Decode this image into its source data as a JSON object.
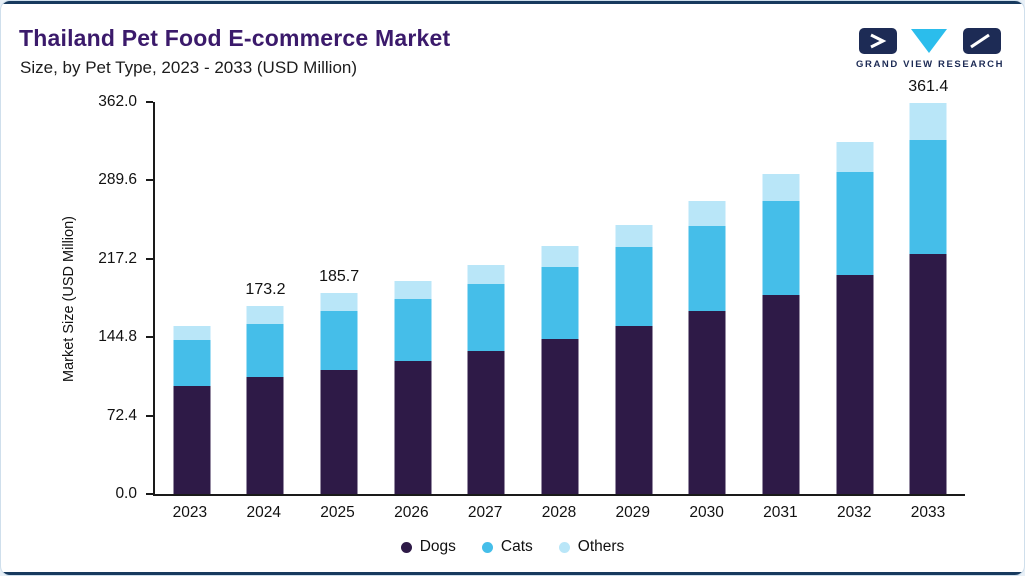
{
  "header": {
    "title": "Thailand Pet Food E-commerce Market",
    "subtitle": "Size, by Pet Type, 2023 - 2033 (USD Million)",
    "logo_text": "GRAND VIEW RESEARCH"
  },
  "colors": {
    "title_purple": "#3B1A6B",
    "topbar_navy": "#173A5E",
    "logo_navy": "#1D2B55",
    "logo_cyan": "#2BBDEC",
    "axis_text": "#111111",
    "page_background": "#E8F0F7",
    "dogs": "#2E1A47",
    "cats": "#45BEE9",
    "others": "#B9E6F8"
  },
  "chart_data": {
    "type": "bar",
    "stacked": true,
    "title": "Thailand Pet Food E-commerce Market Size, by Pet Type, 2023 - 2033 (USD Million)",
    "categories": [
      "2023",
      "2024",
      "2025",
      "2026",
      "2027",
      "2028",
      "2029",
      "2030",
      "2031",
      "2032",
      "2033"
    ],
    "series": [
      {
        "name": "Dogs",
        "color": "#2E1A47",
        "values": [
          100,
          108,
          115,
          123,
          132,
          143,
          155,
          169,
          184,
          202,
          222
        ]
      },
      {
        "name": "Cats",
        "color": "#45BEE9",
        "values": [
          42,
          49,
          54,
          57,
          62,
          67,
          73,
          79,
          87,
          95,
          105
        ]
      },
      {
        "name": "Others",
        "color": "#B9E6F8",
        "values": [
          13,
          16.2,
          16.7,
          17,
          18,
          19,
          21,
          23,
          25,
          28,
          34.4
        ]
      }
    ],
    "totals": [
      155,
      173.2,
      185.7,
      197,
      212,
      229,
      249,
      271,
      296,
      325,
      361.4
    ],
    "bar_total_labels": [
      "",
      "173.2",
      "185.7",
      "",
      "",
      "",
      "",
      "",
      "",
      "",
      "361.4"
    ],
    "xlabel": "",
    "ylabel": "Market Size (USD Million)",
    "yticks": [
      0.0,
      72.4,
      144.8,
      217.2,
      289.6,
      362.0
    ],
    "ytick_labels": [
      "0.0",
      "72.4",
      "144.8",
      "217.2",
      "289.6",
      "362.0"
    ],
    "ylim": [
      0,
      362.0
    ],
    "grid": false,
    "legend_position": "bottom",
    "legend": [
      "Dogs",
      "Cats",
      "Others"
    ]
  }
}
